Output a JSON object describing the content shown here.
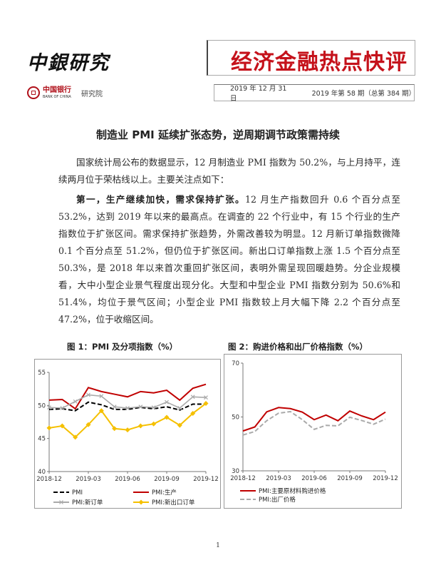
{
  "header": {
    "brand": "中銀研究",
    "bank_name_cn": "中国银行",
    "bank_name_en": "BANK OF CHINA",
    "institute": "研究院",
    "series_title": "经济金融热点快评",
    "date": "2019 年 12 月 31 日",
    "issue": "2019 年第 58 期（总第 384 期）"
  },
  "headline": "制造业 PMI 延续扩张态势，逆周期调节政策需持续",
  "body": {
    "p1": "国家统计局公布的数据显示，12 月制造业 PMI 指数为 50.2%，与上月持平，连续两月位于荣枯线以上。主要关注点如下：",
    "p2_bold": "第一，生产继续加快，需求保持扩张。",
    "p2_rest": "12 月生产指数回升 0.6 个百分点至 53.2%，达到 2019 年以来的最高点。在调查的 22 个行业中，有 15 个行业的生产指数位于扩张区间。需求保持扩张趋势，外需改善较为明显。12 月新订单指数微降 0.1 个百分点至 51.2%，但仍位于扩张区间。新出口订单指数上涨 1.5 个百分点至 50.3%，是 2018 年以来首次重回扩张区间，表明外需呈现回暖趋势。分企业规模看，大中小型企业景气程度出现分化。大型和中型企业 PMI 指数分别为 50.6%和 51.4%，均位于景气区间；小型企业 PMI 指数较上月大幅下降 2.2 个百分点至 47.2%，位于收缩区间。"
  },
  "page_number": "1",
  "chart_data": [
    {
      "type": "line",
      "title": "图 1：PMI 及分项指数（%）",
      "x": [
        "2018-12",
        "2019-01",
        "2019-02",
        "2019-03",
        "2019-04",
        "2019-05",
        "2019-06",
        "2019-07",
        "2019-08",
        "2019-09",
        "2019-10",
        "2019-11",
        "2019-12"
      ],
      "x_tick_labels": [
        "2018-12",
        "2019-03",
        "2019-06",
        "2019-09",
        "2019-12"
      ],
      "ylim": [
        40,
        55
      ],
      "y_ticks": [
        40,
        45,
        50,
        55
      ],
      "grid": false,
      "legend_placement": "bottom",
      "series": [
        {
          "name": "PMI",
          "color": "#000000",
          "style": "dashed",
          "values": [
            49.4,
            49.5,
            49.2,
            50.5,
            50.1,
            49.4,
            49.4,
            49.7,
            49.5,
            49.8,
            49.3,
            50.2,
            50.2
          ]
        },
        {
          "name": "PMI:生产",
          "color": "#c00000",
          "style": "solid",
          "values": [
            50.8,
            50.9,
            49.5,
            52.7,
            52.1,
            51.7,
            51.3,
            52.1,
            51.9,
            52.3,
            50.8,
            52.6,
            53.2
          ]
        },
        {
          "name": "PMI:新订单",
          "color": "#aaaaaa",
          "style": "solid-x",
          "values": [
            49.7,
            49.6,
            50.6,
            51.6,
            51.4,
            49.8,
            49.6,
            49.8,
            49.7,
            50.5,
            49.6,
            51.3,
            51.2
          ]
        },
        {
          "name": "PMI:新出口订单",
          "color": "#f5c000",
          "style": "solid-diamond",
          "values": [
            46.6,
            46.9,
            45.2,
            47.1,
            49.2,
            46.5,
            46.3,
            46.9,
            47.2,
            48.2,
            47.0,
            48.8,
            50.3
          ]
        }
      ]
    },
    {
      "type": "line",
      "title": "图 2：购进价格和出厂价格指数（%）",
      "x": [
        "2018-12",
        "2019-01",
        "2019-02",
        "2019-03",
        "2019-04",
        "2019-05",
        "2019-06",
        "2019-07",
        "2019-08",
        "2019-09",
        "2019-10",
        "2019-11",
        "2019-12"
      ],
      "x_tick_labels": [
        "2018-12",
        "2019-03",
        "2019-06",
        "2019-09",
        "2019-12"
      ],
      "ylim": [
        30,
        70
      ],
      "y_ticks": [
        30,
        50,
        70
      ],
      "grid": false,
      "legend_placement": "bottom",
      "series": [
        {
          "name": "PMI:主要原材料购进价格",
          "color": "#c00000",
          "style": "solid",
          "values": [
            44.8,
            46.3,
            51.9,
            53.5,
            53.1,
            51.8,
            49.0,
            50.7,
            48.6,
            52.2,
            50.4,
            49.0,
            51.8
          ]
        },
        {
          "name": "PMI:出厂价格",
          "color": "#aaaaaa",
          "style": "dashed",
          "values": [
            43.3,
            44.6,
            48.6,
            51.4,
            52.0,
            49.0,
            45.4,
            46.9,
            46.7,
            49.9,
            48.7,
            47.3,
            49.2
          ]
        }
      ]
    }
  ]
}
